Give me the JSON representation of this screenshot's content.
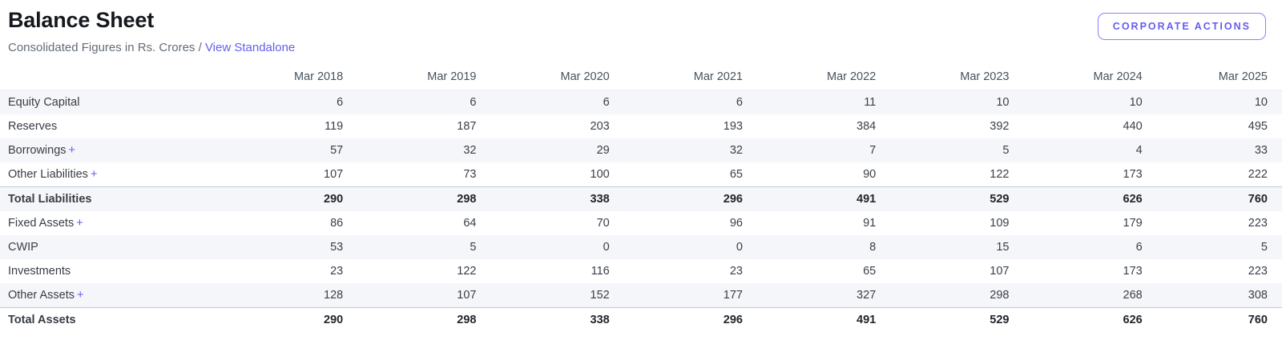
{
  "page": {
    "title": "Balance Sheet",
    "subtitle_prefix": "Consolidated Figures in Rs. Crores /",
    "view_link_label": "View Standalone",
    "corporate_actions_label": "CORPORATE ACTIONS"
  },
  "colors": {
    "accent": "#655df0",
    "stripe": "#f5f6fa",
    "strong_row_border": "#bccbdb",
    "header_text": "#46525e",
    "body_text": "#3a3f46"
  },
  "icons": {
    "expand_plus": "+"
  },
  "table": {
    "columns": [
      "Mar 2018",
      "Mar 2019",
      "Mar 2020",
      "Mar 2021",
      "Mar 2022",
      "Mar 2023",
      "Mar 2024",
      "Mar 2025"
    ],
    "rows": [
      {
        "label": "Equity Capital",
        "expandable": false,
        "bold": false,
        "striped": true,
        "border_top": false,
        "values": [
          6,
          6,
          6,
          6,
          11,
          10,
          10,
          10
        ]
      },
      {
        "label": "Reserves",
        "expandable": false,
        "bold": false,
        "striped": false,
        "border_top": false,
        "values": [
          119,
          187,
          203,
          193,
          384,
          392,
          440,
          495
        ]
      },
      {
        "label": "Borrowings",
        "expandable": true,
        "bold": false,
        "striped": true,
        "border_top": false,
        "values": [
          57,
          32,
          29,
          32,
          7,
          5,
          4,
          33
        ]
      },
      {
        "label": "Other Liabilities",
        "expandable": true,
        "bold": false,
        "striped": false,
        "border_top": false,
        "values": [
          107,
          73,
          100,
          65,
          90,
          122,
          173,
          222
        ]
      },
      {
        "label": "Total Liabilities",
        "expandable": false,
        "bold": true,
        "striped": true,
        "border_top": true,
        "values": [
          290,
          298,
          338,
          296,
          491,
          529,
          626,
          760
        ]
      },
      {
        "label": "Fixed Assets",
        "expandable": true,
        "bold": false,
        "striped": false,
        "border_top": false,
        "values": [
          86,
          64,
          70,
          96,
          91,
          109,
          179,
          223
        ]
      },
      {
        "label": "CWIP",
        "expandable": false,
        "bold": false,
        "striped": true,
        "border_top": false,
        "values": [
          53,
          5,
          0,
          0,
          8,
          15,
          6,
          5
        ]
      },
      {
        "label": "Investments",
        "expandable": false,
        "bold": false,
        "striped": false,
        "border_top": false,
        "values": [
          23,
          122,
          116,
          23,
          65,
          107,
          173,
          223
        ]
      },
      {
        "label": "Other Assets",
        "expandable": true,
        "bold": false,
        "striped": true,
        "border_top": false,
        "values": [
          128,
          107,
          152,
          177,
          327,
          298,
          268,
          308
        ]
      },
      {
        "label": "Total Assets",
        "expandable": false,
        "bold": true,
        "striped": false,
        "border_top": true,
        "values": [
          290,
          298,
          338,
          296,
          491,
          529,
          626,
          760
        ]
      }
    ]
  }
}
